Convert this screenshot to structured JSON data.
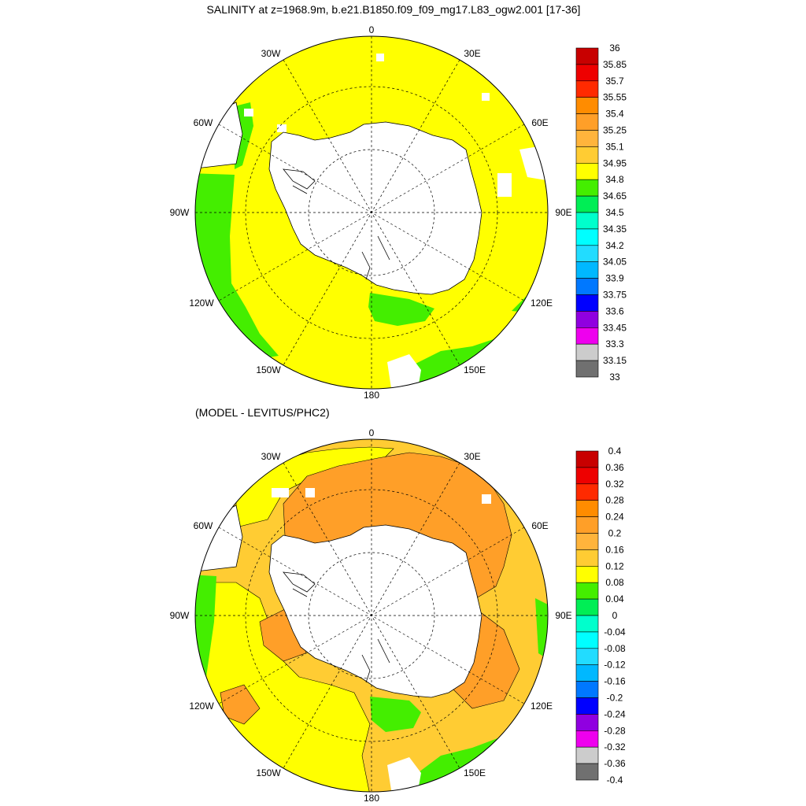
{
  "panel_top": {
    "title": "SALINITY at z=1968.9m, b.e21.B1850.f09_f09_mg17.L83_ogw2.001 [17-36]",
    "lon_labels": {
      "lon_0": "0",
      "lon_30e": "30E",
      "lon_60e": "60E",
      "lon_90e": "90E",
      "lon_120e": "120E",
      "lon_150e": "150E",
      "lon_180": "180",
      "lon_150w": "150W",
      "lon_120w": "120W",
      "lon_90w": "90W",
      "lon_60w": "60W",
      "lon_30w": "30W"
    },
    "colorbar": {
      "labels": [
        "36",
        "35.85",
        "35.7",
        "35.55",
        "35.4",
        "35.25",
        "35.1",
        "34.95",
        "34.8",
        "34.65",
        "34.5",
        "34.35",
        "34.2",
        "34.05",
        "33.9",
        "33.75",
        "33.6",
        "33.45",
        "33.3",
        "33.15",
        "33"
      ],
      "colors": [
        "#c80000",
        "#ee0000",
        "#ff2a00",
        "#ff8c00",
        "#ff9f28",
        "#ffb43c",
        "#ffcc33",
        "#ffff00",
        "#44ee00",
        "#00ee55",
        "#00ffcc",
        "#00ffff",
        "#22dcff",
        "#00b8ff",
        "#0078ff",
        "#0000ff",
        "#9000e0",
        "#ee00ee",
        "#cccccc",
        "#707070"
      ]
    },
    "fill_colors": {
      "dominant": "#ffff00",
      "low": "#44ee00"
    }
  },
  "panel_bottom": {
    "title": "(MODEL - LEVITUS/PHC2)",
    "lon_labels": {
      "lon_0": "0",
      "lon_30e": "30E",
      "lon_60e": "60E",
      "lon_90e": "90E",
      "lon_120e": "120E",
      "lon_150e": "150E",
      "lon_180": "180",
      "lon_150w": "150W",
      "lon_120w": "120W",
      "lon_90w": "90W",
      "lon_60w": "60W",
      "lon_30w": "30W"
    },
    "colorbar": {
      "labels": [
        "0.4",
        "0.36",
        "0.32",
        "0.28",
        "0.24",
        "0.2",
        "0.16",
        "0.12",
        "0.08",
        "0.04",
        "0",
        "-0.04",
        "-0.08",
        "-0.12",
        "-0.16",
        "-0.2",
        "-0.24",
        "-0.28",
        "-0.32",
        "-0.36",
        "-0.4"
      ],
      "colors": [
        "#c80000",
        "#ee0000",
        "#ff2a00",
        "#ff8c00",
        "#ff9f28",
        "#ffb43c",
        "#ffcc33",
        "#ffff00",
        "#44ee00",
        "#00ee55",
        "#00ffcc",
        "#00ffff",
        "#22dcff",
        "#00b8ff",
        "#0078ff",
        "#0000ff",
        "#9000e0",
        "#ee00ee",
        "#cccccc",
        "#707070"
      ]
    },
    "fill_colors": {
      "ring": "#ff9f28",
      "mid": "#ffcc33",
      "outer": "#ffff00",
      "low": "#44ee00"
    }
  }
}
